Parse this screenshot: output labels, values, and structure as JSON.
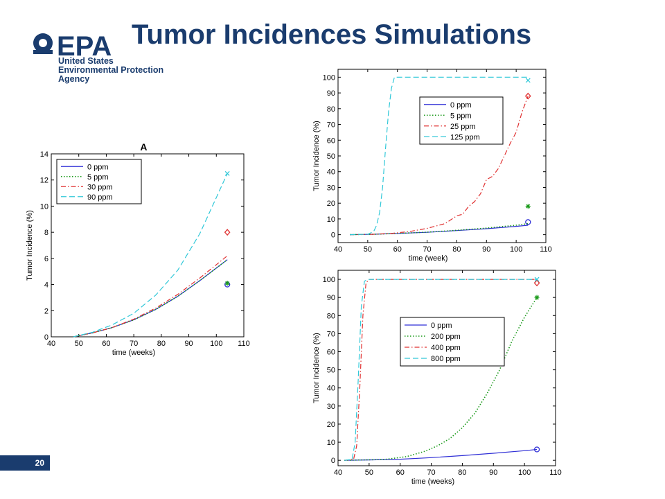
{
  "header": {
    "title": "Tumor Incidences Simulations",
    "agency_lines": [
      "United States",
      "Environmental Protection",
      "Agency"
    ]
  },
  "footer": {
    "page_number": "20"
  },
  "colors": {
    "brand": "#1a3c6e",
    "s0": "#2f2fd6",
    "s1": "#1a9a1a",
    "s2": "#e03030",
    "s3": "#30c8d8"
  },
  "chart_data": [
    {
      "type": "line",
      "title": "A",
      "xlabel": "time (weeks)",
      "ylabel": "Tumor Incidence (%)",
      "xlim": [
        40,
        110
      ],
      "ylim": [
        0,
        14
      ],
      "xticks": [
        40,
        50,
        60,
        70,
        80,
        90,
        100,
        110
      ],
      "yticks": [
        0,
        2,
        4,
        6,
        8,
        10,
        12,
        14
      ],
      "legend_position": "top-left",
      "series": [
        {
          "name": "0 ppm",
          "style": "solid",
          "x": [
            48,
            55,
            62,
            70,
            78,
            86,
            94,
            104
          ],
          "y": [
            0,
            0.3,
            0.7,
            1.3,
            2.1,
            3.1,
            4.3,
            5.9
          ],
          "marker": {
            "x": 104,
            "y": 4,
            "symbol": "circle"
          }
        },
        {
          "name": "5 ppm",
          "style": "dotted",
          "x": [
            48,
            55,
            62,
            70,
            78,
            86,
            94,
            104
          ],
          "y": [
            0,
            0.3,
            0.7,
            1.3,
            2.1,
            3.1,
            4.3,
            5.9
          ],
          "marker": {
            "x": 104,
            "y": 4.1,
            "symbol": "star"
          }
        },
        {
          "name": "30 ppm",
          "style": "dashdot",
          "x": [
            48,
            55,
            62,
            70,
            78,
            86,
            94,
            104
          ],
          "y": [
            0,
            0.3,
            0.7,
            1.35,
            2.2,
            3.25,
            4.5,
            6.2
          ],
          "marker": {
            "x": 104,
            "y": 8,
            "symbol": "diamond"
          }
        },
        {
          "name": "90 ppm",
          "style": "dashed",
          "x": [
            48,
            55,
            62,
            70,
            78,
            86,
            94,
            104
          ],
          "y": [
            0,
            0.35,
            0.9,
            1.8,
            3.2,
            5.1,
            7.9,
            12.5
          ],
          "marker": {
            "x": 104,
            "y": 12.5,
            "symbol": "x"
          }
        }
      ]
    },
    {
      "type": "line",
      "title": "",
      "xlabel": "time (week)",
      "ylabel": "Tumor Incidence (%)",
      "xlim": [
        40,
        110
      ],
      "ylim": [
        -5,
        105
      ],
      "xticks": [
        40,
        50,
        60,
        70,
        80,
        90,
        100,
        110
      ],
      "yticks": [
        0,
        10,
        20,
        30,
        40,
        50,
        60,
        70,
        80,
        90,
        100
      ],
      "legend_position": "top-center",
      "series": [
        {
          "name": "0 ppm",
          "style": "solid",
          "x": [
            44,
            52,
            60,
            70,
            80,
            90,
            100,
            104
          ],
          "y": [
            0,
            0.3,
            0.8,
            1.5,
            2.6,
            3.8,
            5.3,
            6
          ],
          "marker": {
            "x": 104,
            "y": 8,
            "symbol": "circle"
          }
        },
        {
          "name": "5 ppm",
          "style": "dotted",
          "x": [
            44,
            52,
            60,
            70,
            80,
            90,
            100,
            104
          ],
          "y": [
            0,
            0.3,
            0.8,
            1.6,
            2.8,
            4.2,
            6,
            7
          ],
          "marker": {
            "x": 104,
            "y": 18,
            "symbol": "star"
          }
        },
        {
          "name": "25 ppm",
          "style": "dashdot",
          "x": [
            44,
            52,
            58,
            64,
            70,
            76,
            80,
            82,
            84,
            86,
            88,
            90,
            92,
            94,
            96,
            98,
            100,
            102,
            104
          ],
          "y": [
            0,
            0.3,
            0.8,
            2,
            4,
            7,
            12,
            13,
            18,
            21,
            26,
            35,
            37,
            42,
            50,
            58,
            65,
            78,
            88
          ],
          "marker": {
            "x": 104,
            "y": 88,
            "symbol": "diamond"
          }
        },
        {
          "name": "125 ppm",
          "style": "dashed",
          "x": [
            44,
            50,
            52,
            53,
            54,
            55,
            56,
            57,
            58,
            59,
            60,
            104
          ],
          "y": [
            0,
            0.3,
            2,
            6,
            14,
            30,
            55,
            78,
            93,
            100,
            100,
            100
          ],
          "marker": {
            "x": 104,
            "y": 98,
            "symbol": "x"
          }
        }
      ]
    },
    {
      "type": "line",
      "title": "",
      "xlabel": "time (weeks)",
      "ylabel": "Tumor Incidence (%)",
      "xlim": [
        40,
        110
      ],
      "ylim": [
        -3,
        105
      ],
      "xticks": [
        40,
        50,
        60,
        70,
        80,
        90,
        100,
        110
      ],
      "yticks": [
        0,
        10,
        20,
        30,
        40,
        50,
        60,
        70,
        80,
        90,
        100
      ],
      "legend_position": "center-left",
      "series": [
        {
          "name": "0 ppm",
          "style": "solid",
          "x": [
            42,
            50,
            60,
            70,
            80,
            90,
            100,
            104
          ],
          "y": [
            0,
            0.2,
            0.6,
            1.5,
            2.6,
            3.9,
            5.3,
            6
          ],
          "marker": {
            "x": 104,
            "y": 6,
            "symbol": "circle"
          }
        },
        {
          "name": "200 ppm",
          "style": "dotted",
          "x": [
            42,
            55,
            62,
            68,
            72,
            76,
            80,
            84,
            88,
            92,
            96,
            100,
            104
          ],
          "y": [
            0,
            0.5,
            2,
            5,
            8,
            12,
            18,
            26,
            37,
            50,
            66,
            79,
            90
          ],
          "marker": {
            "x": 104,
            "y": 90,
            "symbol": "star"
          }
        },
        {
          "name": "400 ppm",
          "style": "dashdot",
          "x": [
            42,
            45,
            46,
            47,
            48,
            49,
            50,
            104
          ],
          "y": [
            0,
            0.5,
            8,
            40,
            80,
            98,
            100,
            100
          ],
          "marker": {
            "x": 104,
            "y": 98,
            "symbol": "diamond"
          }
        },
        {
          "name": "800 ppm",
          "style": "dashed",
          "x": [
            42,
            44.5,
            45.5,
            46.5,
            47.5,
            48.5,
            49.5,
            104
          ],
          "y": [
            0,
            0.5,
            10,
            45,
            85,
            99,
            100,
            100
          ],
          "marker": {
            "x": 104,
            "y": 100,
            "symbol": "x"
          }
        }
      ]
    }
  ]
}
